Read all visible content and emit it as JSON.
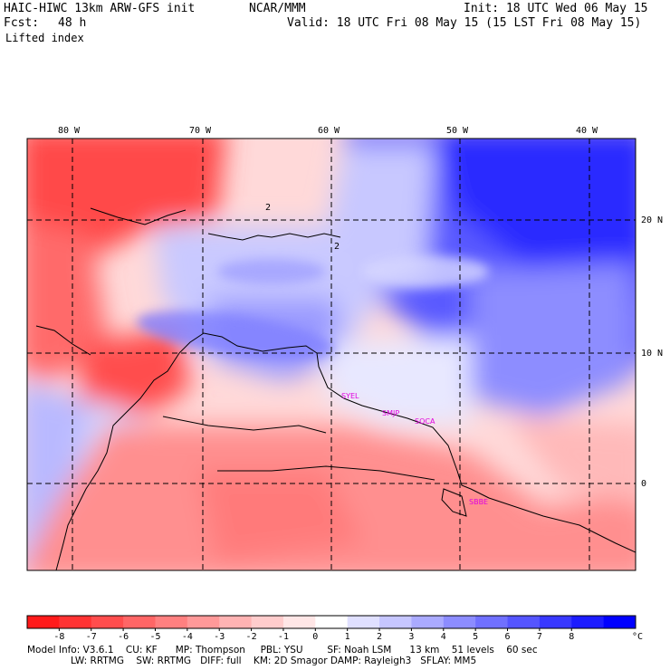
{
  "header": {
    "model": "HAIC-HIWC 13km ARW-GFS init",
    "org": "NCAR/MMM",
    "init": "Init: 18 UTC Wed 06 May 15",
    "fcst_label": "Fcst:",
    "fcst_value": "48 h",
    "valid": "Valid: 18 UTC Fri 08 May 15 (15 LST Fri 08 May 15)",
    "field": "Lifted index"
  },
  "map": {
    "lon_labels": [
      "80 W",
      "70 W",
      "60 W",
      "50 W",
      "40 W"
    ],
    "lat_labels": [
      "20 N",
      "10 N",
      "0"
    ],
    "stations": [
      "SYEL",
      "SMJP",
      "SOCA",
      "SBBE"
    ],
    "contour_label": "2"
  },
  "colorbar": {
    "ticks": [
      "-8",
      "-7",
      "-6",
      "-5",
      "-4",
      "-3",
      "-2",
      "-1",
      "0",
      "1",
      "2",
      "3",
      "4",
      "5",
      "6",
      "7",
      "8"
    ],
    "unit": "°C",
    "colors": [
      "#ff1a1a",
      "#ff3333",
      "#ff4d4d",
      "#ff6666",
      "#ff8080",
      "#ff9999",
      "#ffb3b3",
      "#ffcccc",
      "#ffe6e6",
      "#ffffff",
      "#e0e0ff",
      "#c6c6ff",
      "#aaaaff",
      "#8c8cff",
      "#7070ff",
      "#5555ff",
      "#3838ff",
      "#1c1cff",
      "#0000ff"
    ]
  },
  "footer": {
    "line1": "Model Info: V3.6.1    CU: KF      MP: Thompson     PBL: YSU        SF: Noah LSM      13 km    51 levels    60 sec",
    "line2": "LW: RRTMG    SW: RRTMG   DIFF: full    KM: 2D Smagor DAMP: Rayleigh3   SFLAY: MM5"
  }
}
